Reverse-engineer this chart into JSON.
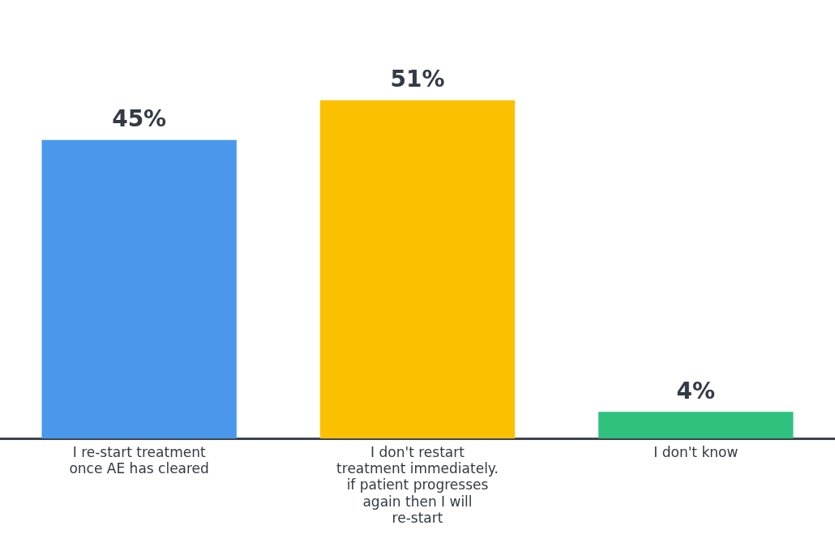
{
  "chart_data": {
    "type": "bar",
    "categories": [
      "I re-start treatment once AE has cleared",
      "I don't restart treatment immediately. if patient progresses again then I will re-start",
      "I don't know"
    ],
    "values": [
      45,
      51,
      4
    ],
    "colors": [
      "#4a98ec",
      "#fbc100",
      "#2ec27e"
    ],
    "value_labels": [
      "45%",
      "51%",
      "4%"
    ],
    "grid": false,
    "legend": false
  }
}
